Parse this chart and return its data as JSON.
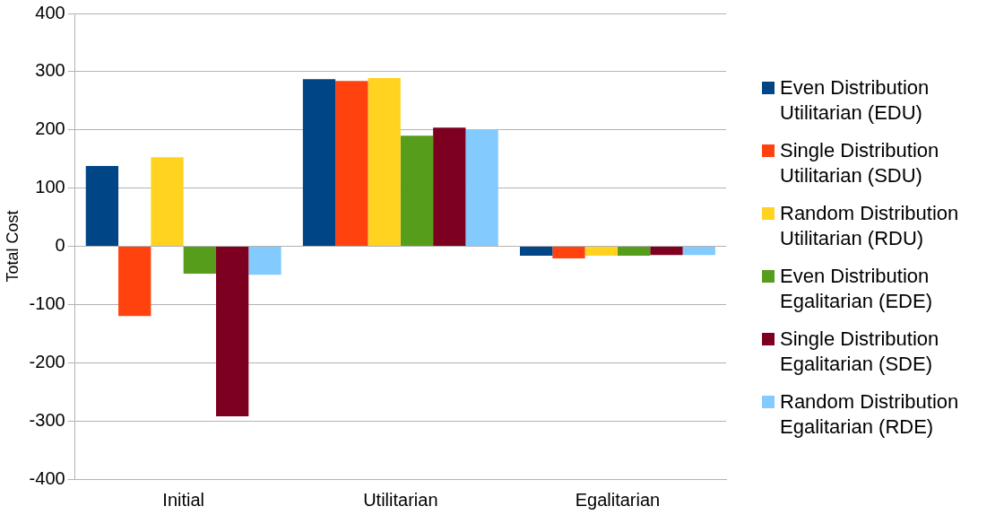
{
  "chart_data": {
    "type": "bar",
    "ylabel": "Total Cost",
    "categories": [
      "Initial",
      "Utilitarian",
      "Egalitarian"
    ],
    "series": [
      {
        "name": "Even Distribution Utilitarian (EDU)",
        "color": "#004586",
        "values": [
          138,
          287,
          -16
        ]
      },
      {
        "name": "Single Distribution Utilitarian (SDU)",
        "color": "#ff420e",
        "values": [
          -120,
          284,
          -21
        ]
      },
      {
        "name": "Random Distribution Utilitarian (RDU)",
        "color": "#ffd320",
        "values": [
          153,
          289,
          -16
        ]
      },
      {
        "name": "Even Distribution Egalitarian (EDE)",
        "color": "#579d1c",
        "values": [
          -47,
          190,
          -16
        ]
      },
      {
        "name": "Single Distribution Egalitarian (SDE)",
        "color": "#7e0021",
        "values": [
          -292,
          204,
          -15
        ]
      },
      {
        "name": "Random Distribution Egalitarian (RDE)",
        "color": "#83caff",
        "values": [
          -49,
          201,
          -15
        ]
      }
    ],
    "ylim": [
      -400,
      400
    ],
    "yticks": [
      -400,
      -300,
      -200,
      -100,
      0,
      100,
      200,
      300,
      400
    ],
    "grid": "y",
    "legend": "right"
  }
}
